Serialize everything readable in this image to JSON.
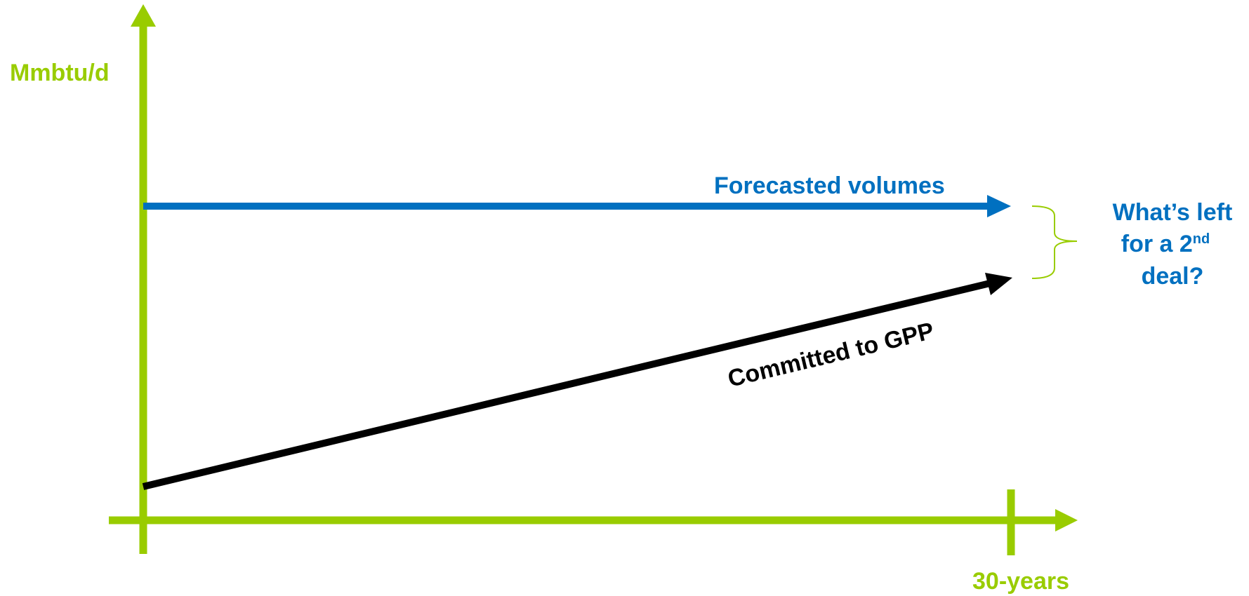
{
  "colors": {
    "axis": "#99CC00",
    "forecast": "#0070C0",
    "committed": "#000000",
    "question": "#0070C0"
  },
  "axes": {
    "y_label": "Mmbtu/d",
    "x_label": "30-years"
  },
  "lines": {
    "forecast_label": "Forecasted volumes",
    "committed_label": "Committed to GPP"
  },
  "question": {
    "line1": "What’s left",
    "line2_main": "for a 2",
    "line2_sup": "nd",
    "line3": "deal?"
  }
}
